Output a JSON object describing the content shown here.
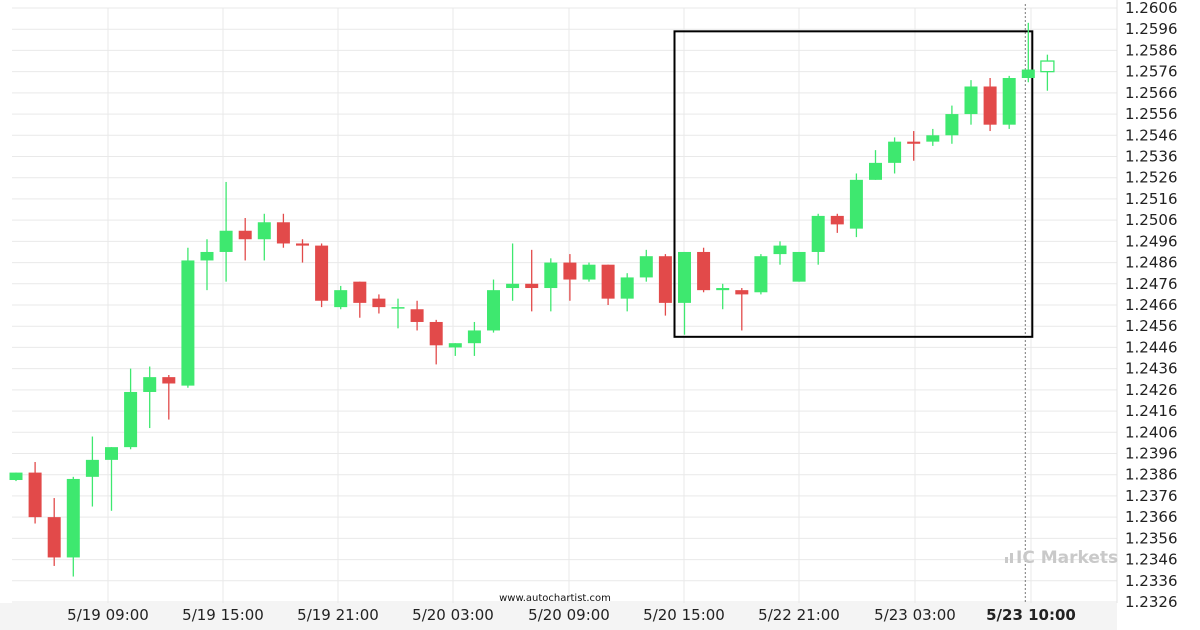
{
  "chart_data": {
    "type": "candlestick",
    "x_labels": [
      "5/19 09:00",
      "5/19 15:00",
      "5/19 21:00",
      "5/20 03:00",
      "5/20 09:00",
      "5/20 15:00",
      "5/22 21:00",
      "5/23 03:00",
      "5/23 10:00"
    ],
    "x_label_bold": "5/23 10:00",
    "y_ticks": [
      "1.2606",
      "1.2596",
      "1.2586",
      "1.2576",
      "1.2566",
      "1.2556",
      "1.2546",
      "1.2536",
      "1.2526",
      "1.2516",
      "1.2506",
      "1.2496",
      "1.2486",
      "1.2476",
      "1.2466",
      "1.2456",
      "1.2446",
      "1.2436",
      "1.2426",
      "1.2416",
      "1.2406",
      "1.2396",
      "1.2386",
      "1.2376",
      "1.2366",
      "1.2356",
      "1.2346",
      "1.2336",
      "1.2326"
    ],
    "ylim": [
      1.2326,
      1.2606
    ],
    "candles": [
      {
        "o": 1.23835,
        "h": 1.2387,
        "l": 1.2383,
        "c": 1.2387
      },
      {
        "o": 1.2387,
        "h": 1.2392,
        "l": 1.2363,
        "c": 1.2366
      },
      {
        "o": 1.2366,
        "h": 1.2375,
        "l": 1.2343,
        "c": 1.2347
      },
      {
        "o": 1.2347,
        "h": 1.2385,
        "l": 1.2338,
        "c": 1.2384
      },
      {
        "o": 1.2385,
        "h": 1.2404,
        "l": 1.2371,
        "c": 1.2393
      },
      {
        "o": 1.2393,
        "h": 1.2399,
        "l": 1.2369,
        "c": 1.2399
      },
      {
        "o": 1.2399,
        "h": 1.2436,
        "l": 1.2398,
        "c": 1.2425
      },
      {
        "o": 1.2425,
        "h": 1.2437,
        "l": 1.2408,
        "c": 1.2432
      },
      {
        "o": 1.2432,
        "h": 1.2433,
        "l": 1.2412,
        "c": 1.2429
      },
      {
        "o": 1.2428,
        "h": 1.2493,
        "l": 1.2427,
        "c": 1.2487
      },
      {
        "o": 1.2487,
        "h": 1.2497,
        "l": 1.2473,
        "c": 1.2491
      },
      {
        "o": 1.2491,
        "h": 1.2524,
        "l": 1.2477,
        "c": 1.2501
      },
      {
        "o": 1.2501,
        "h": 1.2507,
        "l": 1.2487,
        "c": 1.2497
      },
      {
        "o": 1.2497,
        "h": 1.2509,
        "l": 1.2487,
        "c": 1.2505
      },
      {
        "o": 1.2505,
        "h": 1.2509,
        "l": 1.2493,
        "c": 1.2495
      },
      {
        "o": 1.2495,
        "h": 1.2497,
        "l": 1.2486,
        "c": 1.2494
      },
      {
        "o": 1.2494,
        "h": 1.2495,
        "l": 1.2465,
        "c": 1.2468
      },
      {
        "o": 1.2465,
        "h": 1.2475,
        "l": 1.2464,
        "c": 1.2473
      },
      {
        "o": 1.2477,
        "h": 1.2477,
        "l": 1.246,
        "c": 1.2467
      },
      {
        "o": 1.2469,
        "h": 1.2471,
        "l": 1.2462,
        "c": 1.2465
      },
      {
        "o": 1.2465,
        "h": 1.2469,
        "l": 1.2455,
        "c": 1.2465
      },
      {
        "o": 1.2464,
        "h": 1.2468,
        "l": 1.2454,
        "c": 1.2458
      },
      {
        "o": 1.2458,
        "h": 1.2459,
        "l": 1.2438,
        "c": 1.2447
      },
      {
        "o": 1.2446,
        "h": 1.2448,
        "l": 1.2442,
        "c": 1.2448
      },
      {
        "o": 1.2448,
        "h": 1.2458,
        "l": 1.2442,
        "c": 1.2454
      },
      {
        "o": 1.2454,
        "h": 1.2478,
        "l": 1.2453,
        "c": 1.2473
      },
      {
        "o": 1.2474,
        "h": 1.2495,
        "l": 1.2468,
        "c": 1.2476
      },
      {
        "o": 1.2476,
        "h": 1.2492,
        "l": 1.2463,
        "c": 1.2474
      },
      {
        "o": 1.2474,
        "h": 1.2488,
        "l": 1.2463,
        "c": 1.2486
      },
      {
        "o": 1.2486,
        "h": 1.249,
        "l": 1.2468,
        "c": 1.2478
      },
      {
        "o": 1.2478,
        "h": 1.2486,
        "l": 1.2477,
        "c": 1.2485
      },
      {
        "o": 1.2485,
        "h": 1.2485,
        "l": 1.2466,
        "c": 1.2469
      },
      {
        "o": 1.2469,
        "h": 1.2481,
        "l": 1.2463,
        "c": 1.2479
      },
      {
        "o": 1.2479,
        "h": 1.2492,
        "l": 1.2477,
        "c": 1.2489
      },
      {
        "o": 1.2489,
        "h": 1.249,
        "l": 1.2461,
        "c": 1.2467
      },
      {
        "o": 1.2467,
        "h": 1.2491,
        "l": 1.2452,
        "c": 1.2491
      },
      {
        "o": 1.2491,
        "h": 1.2493,
        "l": 1.2472,
        "c": 1.2473
      },
      {
        "o": 1.2473,
        "h": 1.2476,
        "l": 1.2464,
        "c": 1.2474
      },
      {
        "o": 1.2473,
        "h": 1.2474,
        "l": 1.2454,
        "c": 1.2471
      },
      {
        "o": 1.2472,
        "h": 1.249,
        "l": 1.2471,
        "c": 1.2489
      },
      {
        "o": 1.249,
        "h": 1.2496,
        "l": 1.2485,
        "c": 1.2494
      },
      {
        "o": 1.2477,
        "h": 1.2491,
        "l": 1.2477,
        "c": 1.2491
      },
      {
        "o": 1.2491,
        "h": 1.2509,
        "l": 1.2485,
        "c": 1.2508
      },
      {
        "o": 1.2508,
        "h": 1.2509,
        "l": 1.25,
        "c": 1.2504
      },
      {
        "o": 1.2502,
        "h": 1.2528,
        "l": 1.2498,
        "c": 1.2525
      },
      {
        "o": 1.2525,
        "h": 1.2539,
        "l": 1.2525,
        "c": 1.2533
      },
      {
        "o": 1.2533,
        "h": 1.2545,
        "l": 1.2528,
        "c": 1.2543
      },
      {
        "o": 1.2543,
        "h": 1.2548,
        "l": 1.2534,
        "c": 1.2542
      },
      {
        "o": 1.2543,
        "h": 1.2549,
        "l": 1.2541,
        "c": 1.2546
      },
      {
        "o": 1.2546,
        "h": 1.256,
        "l": 1.2542,
        "c": 1.2556
      },
      {
        "o": 1.2556,
        "h": 1.2572,
        "l": 1.2551,
        "c": 1.2569
      },
      {
        "o": 1.2569,
        "h": 1.2573,
        "l": 1.2548,
        "c": 1.2551
      },
      {
        "o": 1.2551,
        "h": 1.2574,
        "l": 1.2549,
        "c": 1.2573
      },
      {
        "o": 1.2573,
        "h": 1.2599,
        "l": 1.2571,
        "c": 1.2577
      },
      {
        "o": 1.2576,
        "h": 1.2584,
        "l": 1.2567,
        "c": 1.2581
      }
    ],
    "colors": {
      "up": "#3ee86f",
      "down": "#e24a4a",
      "box": "#000000",
      "grid": "#e9e9e9"
    },
    "pattern_box": {
      "start_index": 35,
      "end_index": 53,
      "low": 1.2451,
      "high": 1.2595
    },
    "current_marker": {
      "index": 53
    },
    "grid": true
  },
  "credit": "www.autochartist.com",
  "brand": "IC Markets"
}
